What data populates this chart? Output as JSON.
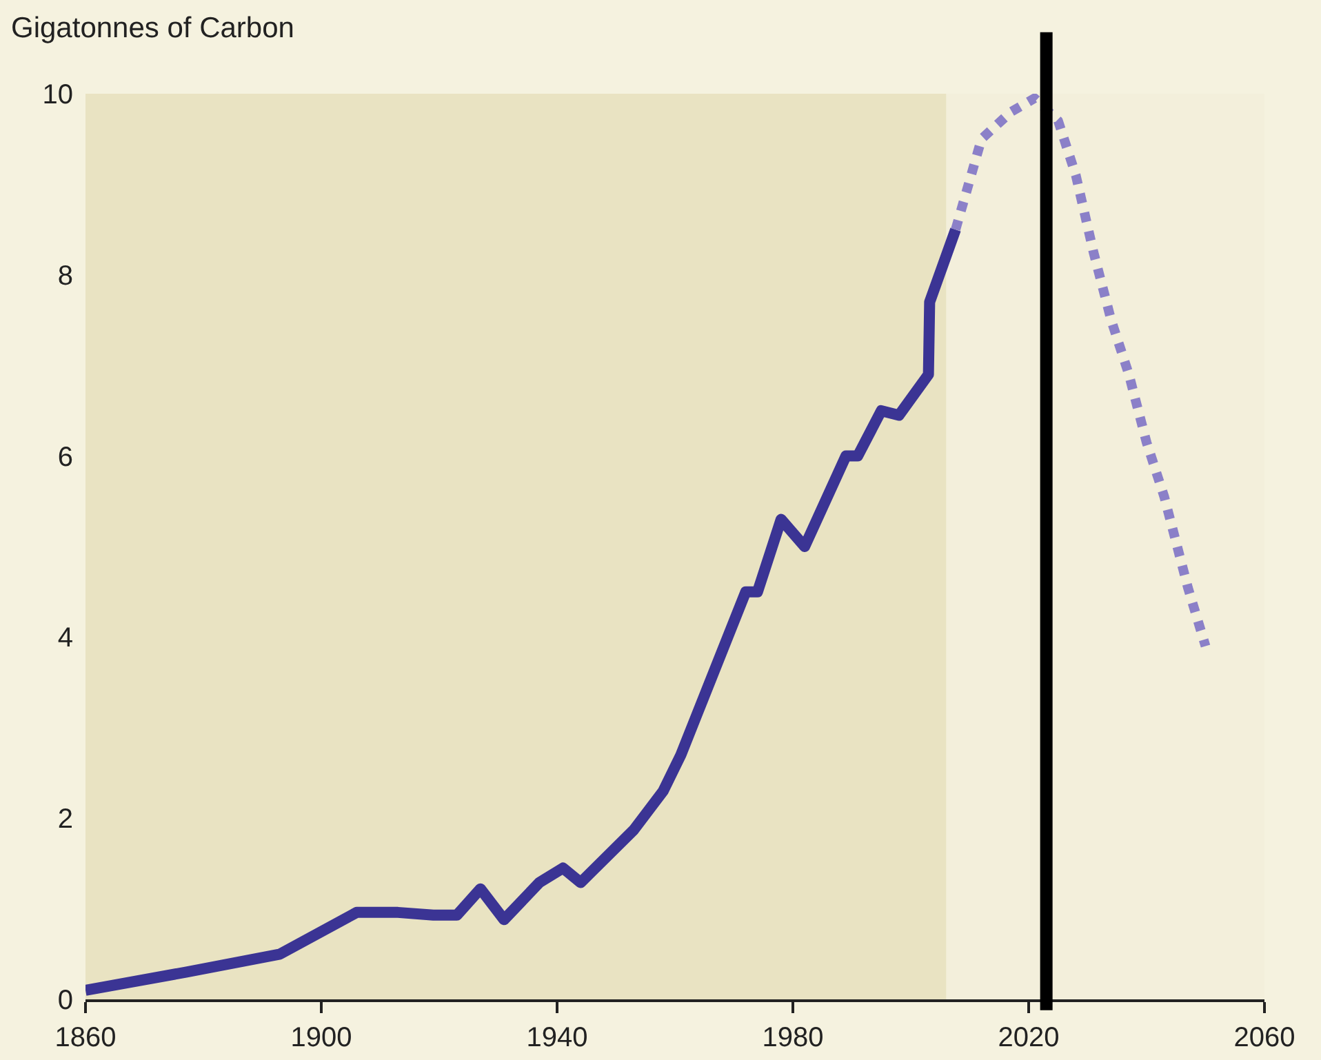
{
  "chart_data": {
    "type": "line",
    "ylabel": "Gigatonnes of Carbon",
    "xlim": [
      1860,
      2060
    ],
    "xticks": [
      1860,
      1900,
      1940,
      1980,
      2020,
      2060
    ],
    "ylim": [
      0,
      10
    ],
    "yticks": [
      0,
      2,
      4,
      6,
      8,
      10
    ],
    "grid": false,
    "marker": "none",
    "series": [
      {
        "color": "#3b3494",
        "line_style": "solid",
        "x": [
          1860,
          1877,
          1893,
          1906,
          1913,
          1919,
          1923,
          1927,
          1931,
          1937,
          1941,
          1944,
          1953,
          1958,
          1961,
          1972,
          1974,
          1978,
          1982,
          1989,
          1991,
          1995,
          1998,
          2003,
          2003.2,
          2007.6
        ],
        "values": [
          0.1,
          0.3,
          0.5,
          0.96,
          0.96,
          0.93,
          0.93,
          1.22,
          0.88,
          1.29,
          1.45,
          1.29,
          1.87,
          2.3,
          2.7,
          4.5,
          4.5,
          5.3,
          5.0,
          6.0,
          6.0,
          6.5,
          6.45,
          6.9,
          7.7,
          8.5
        ]
      },
      {
        "color": "#8b80c8",
        "line_style": "dotted",
        "x": [
          2007.6,
          2012,
          2017,
          2021,
          2025,
          2028,
          2031,
          2034,
          2037,
          2040,
          2043,
          2047,
          2050
        ],
        "values": [
          8.5,
          9.5,
          9.8,
          9.95,
          9.7,
          9.1,
          8.25,
          7.5,
          6.9,
          6.15,
          5.55,
          4.55,
          3.9
        ]
      }
    ],
    "bands": [
      {
        "axis": "x",
        "from": 1860,
        "to": 2006,
        "color": "#e9e3c2"
      }
    ],
    "ref_lines": [
      {
        "axis": "x",
        "value": 2023,
        "color": "#000000"
      }
    ]
  }
}
